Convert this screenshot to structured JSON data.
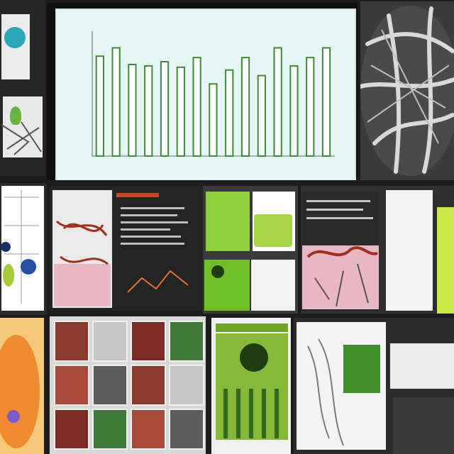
{
  "collage": {
    "panels": [
      {
        "name": "top-left-models",
        "colors": [
          "#e9e9e9",
          "#2aa7b9",
          "#3a6b2e"
        ]
      },
      {
        "name": "bar-chart-screen",
        "colors": [
          "#e6f6f4",
          "#3f8a3a"
        ]
      },
      {
        "name": "vein-structure",
        "colors": [
          "#3b3b3b",
          "#d9d9d9"
        ]
      },
      {
        "name": "left-diagram",
        "colors": [
          "#ffffff",
          "#1a2c6a",
          "#a6c93a"
        ]
      },
      {
        "name": "dark-red-roots",
        "colors": [
          "#242424",
          "#a0301a",
          "#e8b6c4"
        ]
      },
      {
        "name": "green-cards",
        "colors": [
          "#8fd13a",
          "#ffffff"
        ]
      },
      {
        "name": "orange-cell",
        "colors": [
          "#f08a2e",
          "#7a5cc9"
        ]
      },
      {
        "name": "photo-grid",
        "colors": [
          "#8a3b2c",
          "#e4e4e4"
        ]
      },
      {
        "name": "green-circle-poster",
        "colors": [
          "#86b83a",
          "#1e3d12"
        ]
      },
      {
        "name": "right-sketches",
        "colors": [
          "#f4f4f4",
          "#9acf2a"
        ]
      }
    ]
  },
  "chart_data": {
    "type": "bar",
    "values": [
      72,
      78,
      66,
      65,
      68,
      64,
      71,
      52,
      62,
      71,
      58,
      78,
      65,
      71,
      78
    ],
    "ylim": [
      0,
      90
    ]
  }
}
